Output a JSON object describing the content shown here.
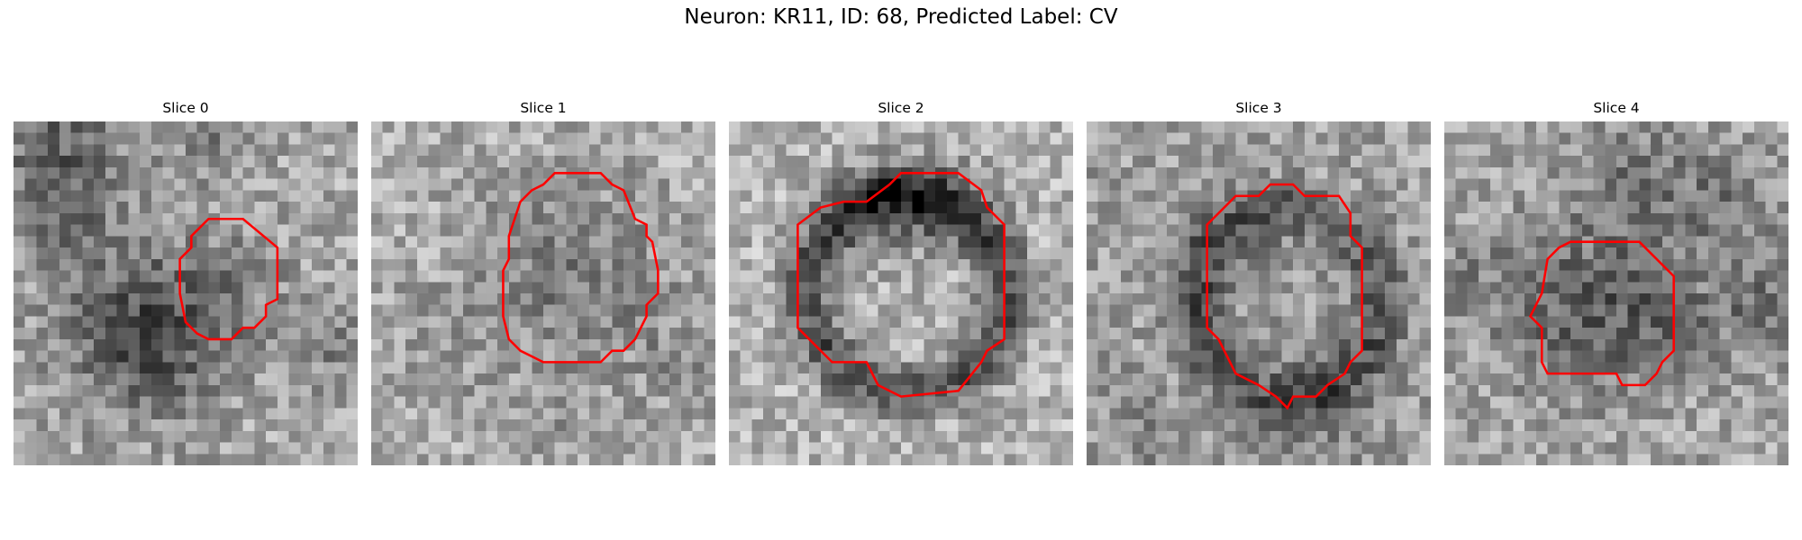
{
  "figure": {
    "title": "Neuron: KR11, ID: 68, Predicted Label: CV"
  },
  "panels": [
    {
      "title": "Slice 0"
    },
    {
      "title": "Slice 1"
    },
    {
      "title": "Slice 2"
    },
    {
      "title": "Slice 3"
    },
    {
      "title": "Slice 4"
    }
  ],
  "colors": {
    "contour": "#ff0000",
    "colormap": "gray"
  }
}
